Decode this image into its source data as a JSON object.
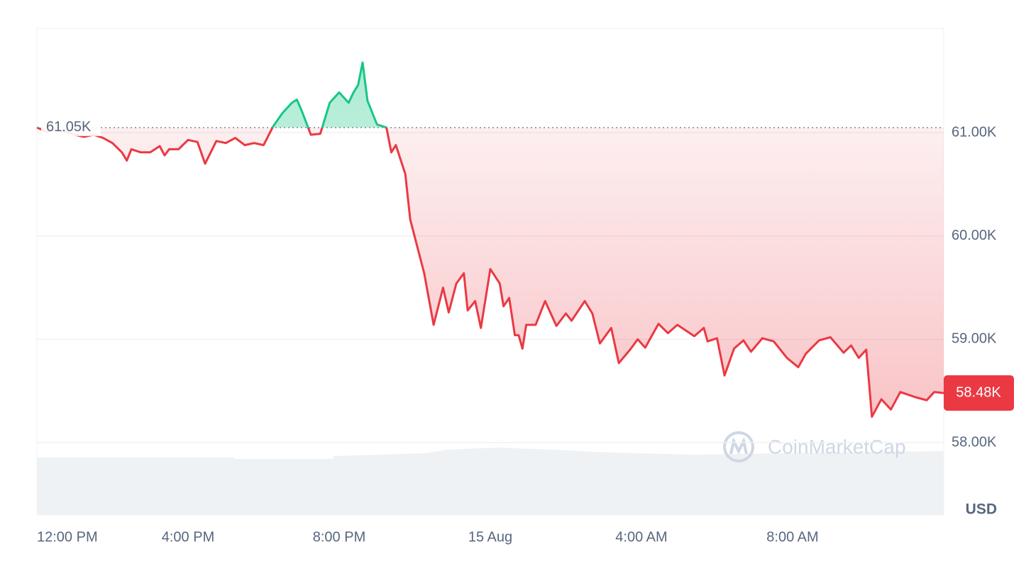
{
  "chart_data": {
    "type": "line",
    "x": [
      0,
      0.25,
      0.5,
      0.75,
      1.0,
      1.25,
      1.5,
      1.75,
      2.0,
      2.25,
      2.38,
      2.5,
      2.75,
      3.0,
      3.25,
      3.38,
      3.5,
      3.75,
      4.0,
      4.25,
      4.45,
      4.75,
      5.0,
      5.25,
      5.5,
      5.75,
      6.0,
      6.25,
      6.5,
      6.75,
      6.88,
      7.0,
      7.25,
      7.5,
      7.75,
      8.0,
      8.25,
      8.38,
      8.5,
      8.62,
      8.75,
      9.0,
      9.25,
      9.38,
      9.5,
      9.75,
      9.88,
      10.25,
      10.5,
      10.75,
      10.9,
      11.1,
      11.3,
      11.4,
      11.6,
      11.75,
      12.0,
      12.25,
      12.35,
      12.5,
      12.65,
      12.75,
      12.85,
      12.95,
      13.2,
      13.45,
      13.75,
      14.0,
      14.15,
      14.5,
      14.7,
      14.9,
      15.2,
      15.4,
      15.7,
      15.9,
      16.1,
      16.45,
      16.7,
      16.95,
      17.4,
      17.65,
      17.75,
      18.0,
      18.2,
      18.45,
      18.7,
      18.9,
      19.2,
      19.5,
      19.85,
      20.15,
      20.35,
      20.7,
      21.0,
      21.35,
      21.55,
      21.75,
      21.95,
      22.1,
      22.35,
      22.6,
      22.85,
      23.25,
      23.55,
      23.75,
      24.0
    ],
    "values": [
      61050,
      61010,
      61030,
      61010,
      60980,
      60960,
      60980,
      60950,
      60900,
      60810,
      60730,
      60840,
      60810,
      60810,
      60870,
      60780,
      60840,
      60840,
      60930,
      60910,
      60700,
      60920,
      60900,
      60950,
      60880,
      60900,
      60880,
      61060,
      61190,
      61290,
      61320,
      61220,
      60980,
      60990,
      61290,
      61390,
      61290,
      61390,
      61460,
      61680,
      61310,
      61080,
      61050,
      60810,
      60880,
      60600,
      60160,
      59640,
      59140,
      59500,
      59260,
      59540,
      59640,
      59280,
      59370,
      59110,
      59680,
      59540,
      59320,
      59400,
      59040,
      59040,
      58910,
      59140,
      59140,
      59370,
      59130,
      59250,
      59180,
      59370,
      59250,
      58960,
      59110,
      58770,
      58900,
      59000,
      58920,
      59150,
      59060,
      59140,
      59030,
      59110,
      58980,
      59010,
      58650,
      58910,
      58990,
      58880,
      59010,
      58980,
      58820,
      58730,
      58860,
      58990,
      59020,
      58870,
      58940,
      58820,
      58900,
      58250,
      58420,
      58320,
      58490,
      58440,
      58410,
      58490,
      58480
    ],
    "up_color": "#16c784",
    "down_color": "#ea3943",
    "xlim": [
      0,
      24
    ],
    "xticks": [
      {
        "value": 0,
        "label": "12:00 PM"
      },
      {
        "value": 4,
        "label": "4:00 PM"
      },
      {
        "value": 8,
        "label": "8:00 PM"
      },
      {
        "value": 12,
        "label": "15 Aug"
      },
      {
        "value": 16,
        "label": "4:00 AM"
      },
      {
        "value": 20,
        "label": "8:00 AM"
      }
    ],
    "ylim": [
      57300,
      62010
    ],
    "yticks": [
      {
        "value": 58000,
        "label": "58.00K"
      },
      {
        "value": 59000,
        "label": "59.00K"
      },
      {
        "value": 60000,
        "label": "60.00K"
      },
      {
        "value": 61000,
        "label": "61.00K"
      }
    ],
    "y_label": "USD",
    "baseline": {
      "value": 61050,
      "label": "61.05K"
    },
    "current_price": {
      "value": 58480,
      "label": "58.48K"
    },
    "watermark": "CoinMarketCap",
    "grid": true
  }
}
